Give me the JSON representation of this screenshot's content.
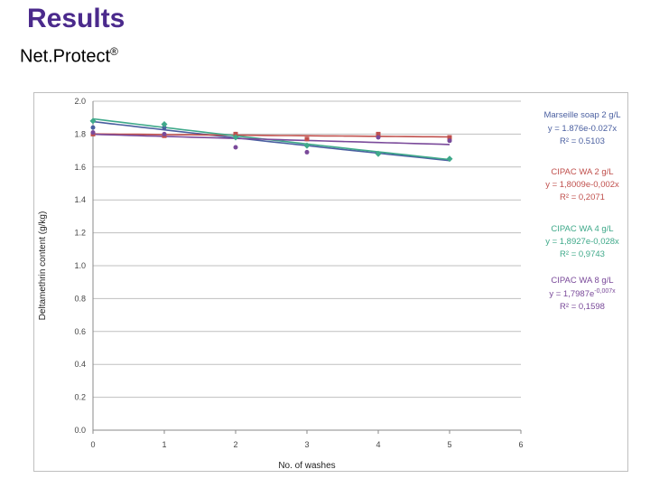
{
  "slide": {
    "title": "Results",
    "subtitle": "Net.Protect",
    "subtitle_mark": "®"
  },
  "chart_data": {
    "type": "scatter",
    "xlabel": "No. of washes",
    "ylabel": "Deltamethrin content (g/kg)",
    "xlim": [
      0,
      6
    ],
    "ylim": [
      0,
      2.0
    ],
    "xticks": [
      "0",
      "1",
      "2",
      "3",
      "4",
      "5",
      "6"
    ],
    "yticks": [
      "0.0",
      "0.2",
      "0.4",
      "0.6",
      "0.8",
      "1.0",
      "1.2",
      "1.4",
      "1.6",
      "1.8",
      "2.0"
    ],
    "grid": true,
    "series": [
      {
        "name": "Marseille soap 2 g/L",
        "color": "#4a5fa0",
        "x": [
          0,
          1,
          2,
          3,
          4,
          5
        ],
        "y": [
          1.84,
          1.84,
          1.8,
          1.77,
          1.79,
          1.76
        ],
        "fit": {
          "a": 1.876,
          "b": -0.027
        },
        "equation": "y = 1.876e-0.027x",
        "r2": "R² = 0.5103"
      },
      {
        "name": "CIPAC WA 2 g/L",
        "color": "#c0504d",
        "x": [
          0,
          1,
          2,
          3,
          4,
          5
        ],
        "y": [
          1.8,
          1.79,
          1.8,
          1.77,
          1.8,
          1.78
        ],
        "fit": {
          "a": 1.8009,
          "b": -0.002
        },
        "equation": "y = 1,8009e-0,002x",
        "r2": "R² = 0,2071"
      },
      {
        "name": "CIPAC WA 4 g/L",
        "color": "#3fa98a",
        "x": [
          0,
          1,
          2,
          3,
          4,
          5
        ],
        "y": [
          1.88,
          1.86,
          1.78,
          1.73,
          1.68,
          1.65
        ],
        "fit": {
          "a": 1.8927,
          "b": -0.028
        },
        "equation": "y = 1,8927e-0,028x",
        "r2": "R² = 0,9743"
      },
      {
        "name": "CIPAC WA 8 g/L",
        "color": "#7a4a9a",
        "x": [
          0,
          1,
          2,
          3,
          4,
          5
        ],
        "y": [
          1.81,
          1.8,
          1.72,
          1.69,
          1.78,
          1.76
        ],
        "fit": {
          "a": 1.7987,
          "b": -0.007
        },
        "equation_base": "y = 1,7987e",
        "equation_exp": "-0,007x",
        "r2": "R² = 0,1598"
      }
    ]
  }
}
